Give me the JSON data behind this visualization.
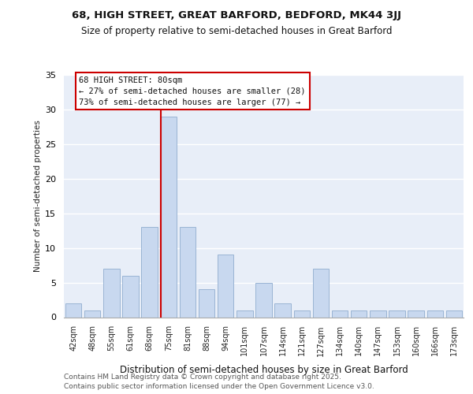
{
  "title_line1": "68, HIGH STREET, GREAT BARFORD, BEDFORD, MK44 3JJ",
  "title_line2": "Size of property relative to semi-detached houses in Great Barford",
  "xlabel": "Distribution of semi-detached houses by size in Great Barford",
  "ylabel": "Number of semi-detached properties",
  "footer": "Contains HM Land Registry data © Crown copyright and database right 2025.\nContains public sector information licensed under the Open Government Licence v3.0.",
  "categories": [
    "42sqm",
    "48sqm",
    "55sqm",
    "61sqm",
    "68sqm",
    "75sqm",
    "81sqm",
    "88sqm",
    "94sqm",
    "101sqm",
    "107sqm",
    "114sqm",
    "121sqm",
    "127sqm",
    "134sqm",
    "140sqm",
    "147sqm",
    "153sqm",
    "160sqm",
    "166sqm",
    "173sqm"
  ],
  "values": [
    2,
    1,
    7,
    6,
    13,
    29,
    13,
    4,
    9,
    1,
    5,
    2,
    1,
    7,
    1,
    1,
    1,
    1,
    1,
    1,
    1
  ],
  "bar_color": "#c8d8ef",
  "bar_edge_color": "#9ab4d4",
  "red_line_color": "#cc0000",
  "red_line_index": 5,
  "highlight_label": "68 HIGH STREET: 80sqm",
  "highlight_smaller": "← 27% of semi-detached houses are smaller (28)",
  "highlight_larger": "73% of semi-detached houses are larger (77) →",
  "ylim": [
    0,
    35
  ],
  "yticks": [
    0,
    5,
    10,
    15,
    20,
    25,
    30,
    35
  ],
  "bg_color": "#e8eef8",
  "grid_color": "#ffffff"
}
